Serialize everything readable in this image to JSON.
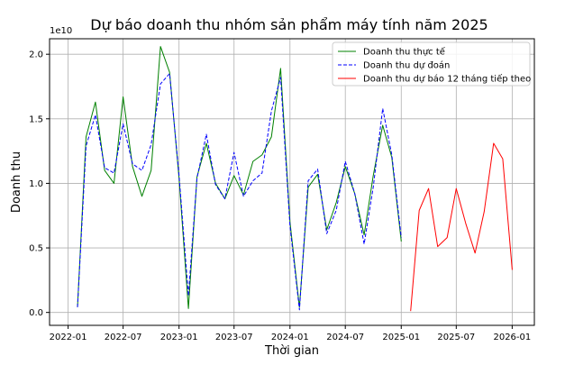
{
  "chart_data": {
    "type": "line",
    "title": "Dự báo doanh thu nhóm sản phẩm máy tính năm 2025",
    "xlabel": "Thời gian",
    "ylabel": "Doanh thu",
    "y_offset_label": "1e10",
    "x_ticks": [
      "2022-01",
      "2022-07",
      "2023-01",
      "2023-07",
      "2024-01",
      "2024-07",
      "2025-01",
      "2025-07",
      "2026-01"
    ],
    "y_ticks": [
      "0.0",
      "0.5",
      "1.0",
      "1.5",
      "2.0"
    ],
    "y_tick_values": [
      0,
      0.5,
      1.0,
      1.5,
      2.0
    ],
    "grid": true,
    "legend_position": "top-right",
    "series": [
      {
        "name": "Doanh thu thực tế",
        "color": "#008000",
        "style": "solid",
        "x": [
          "2022-02",
          "2022-03",
          "2022-04",
          "2022-05",
          "2022-06",
          "2022-07",
          "2022-08",
          "2022-09",
          "2022-10",
          "2022-11",
          "2022-12",
          "2023-01",
          "2023-02",
          "2023-03",
          "2023-04",
          "2023-05",
          "2023-06",
          "2023-07",
          "2023-08",
          "2023-09",
          "2023-10",
          "2023-11",
          "2023-12",
          "2024-01",
          "2024-02",
          "2024-03",
          "2024-04",
          "2024-05",
          "2024-06",
          "2024-07",
          "2024-08",
          "2024-09",
          "2024-10",
          "2024-11",
          "2024-12",
          "2025-01"
        ],
        "values": [
          0.04,
          1.36,
          1.63,
          1.1,
          1.0,
          1.67,
          1.13,
          0.9,
          1.1,
          2.06,
          1.86,
          1.04,
          0.03,
          1.05,
          1.31,
          1.0,
          0.88,
          1.06,
          0.91,
          1.17,
          1.22,
          1.36,
          1.89,
          0.7,
          0.04,
          0.97,
          1.07,
          0.64,
          0.85,
          1.13,
          0.92,
          0.6,
          1.06,
          1.45,
          1.2,
          0.55
        ]
      },
      {
        "name": "Doanh thu dự đoán",
        "color": "#0000ff",
        "style": "dashed",
        "x": [
          "2022-02",
          "2022-03",
          "2022-04",
          "2022-05",
          "2022-06",
          "2022-07",
          "2022-08",
          "2022-09",
          "2022-10",
          "2022-11",
          "2022-12",
          "2023-01",
          "2023-02",
          "2023-03",
          "2023-04",
          "2023-05",
          "2023-06",
          "2023-07",
          "2023-08",
          "2023-09",
          "2023-10",
          "2023-11",
          "2023-12",
          "2024-01",
          "2024-02",
          "2024-03",
          "2024-04",
          "2024-05",
          "2024-06",
          "2024-07",
          "2024-08",
          "2024-09",
          "2024-10",
          "2024-11",
          "2024-12",
          "2025-01"
        ],
        "values": [
          0.04,
          1.29,
          1.53,
          1.12,
          1.08,
          1.46,
          1.15,
          1.1,
          1.3,
          1.77,
          1.85,
          1.06,
          0.13,
          1.04,
          1.38,
          0.99,
          0.88,
          1.24,
          0.9,
          1.02,
          1.08,
          1.56,
          1.82,
          0.67,
          0.02,
          1.02,
          1.11,
          0.61,
          0.79,
          1.17,
          0.92,
          0.53,
          0.97,
          1.58,
          1.22,
          0.58
        ]
      },
      {
        "name": "Doanh thu dự báo 12 tháng tiếp theo",
        "color": "#ff0000",
        "style": "solid",
        "x": [
          "2025-02",
          "2025-03",
          "2025-04",
          "2025-05",
          "2025-06",
          "2025-07",
          "2025-08",
          "2025-09",
          "2025-10",
          "2025-11",
          "2025-12",
          "2026-01"
        ],
        "values": [
          0.01,
          0.79,
          0.96,
          0.51,
          0.58,
          0.96,
          0.69,
          0.46,
          0.78,
          1.31,
          1.19,
          0.33
        ]
      }
    ]
  }
}
